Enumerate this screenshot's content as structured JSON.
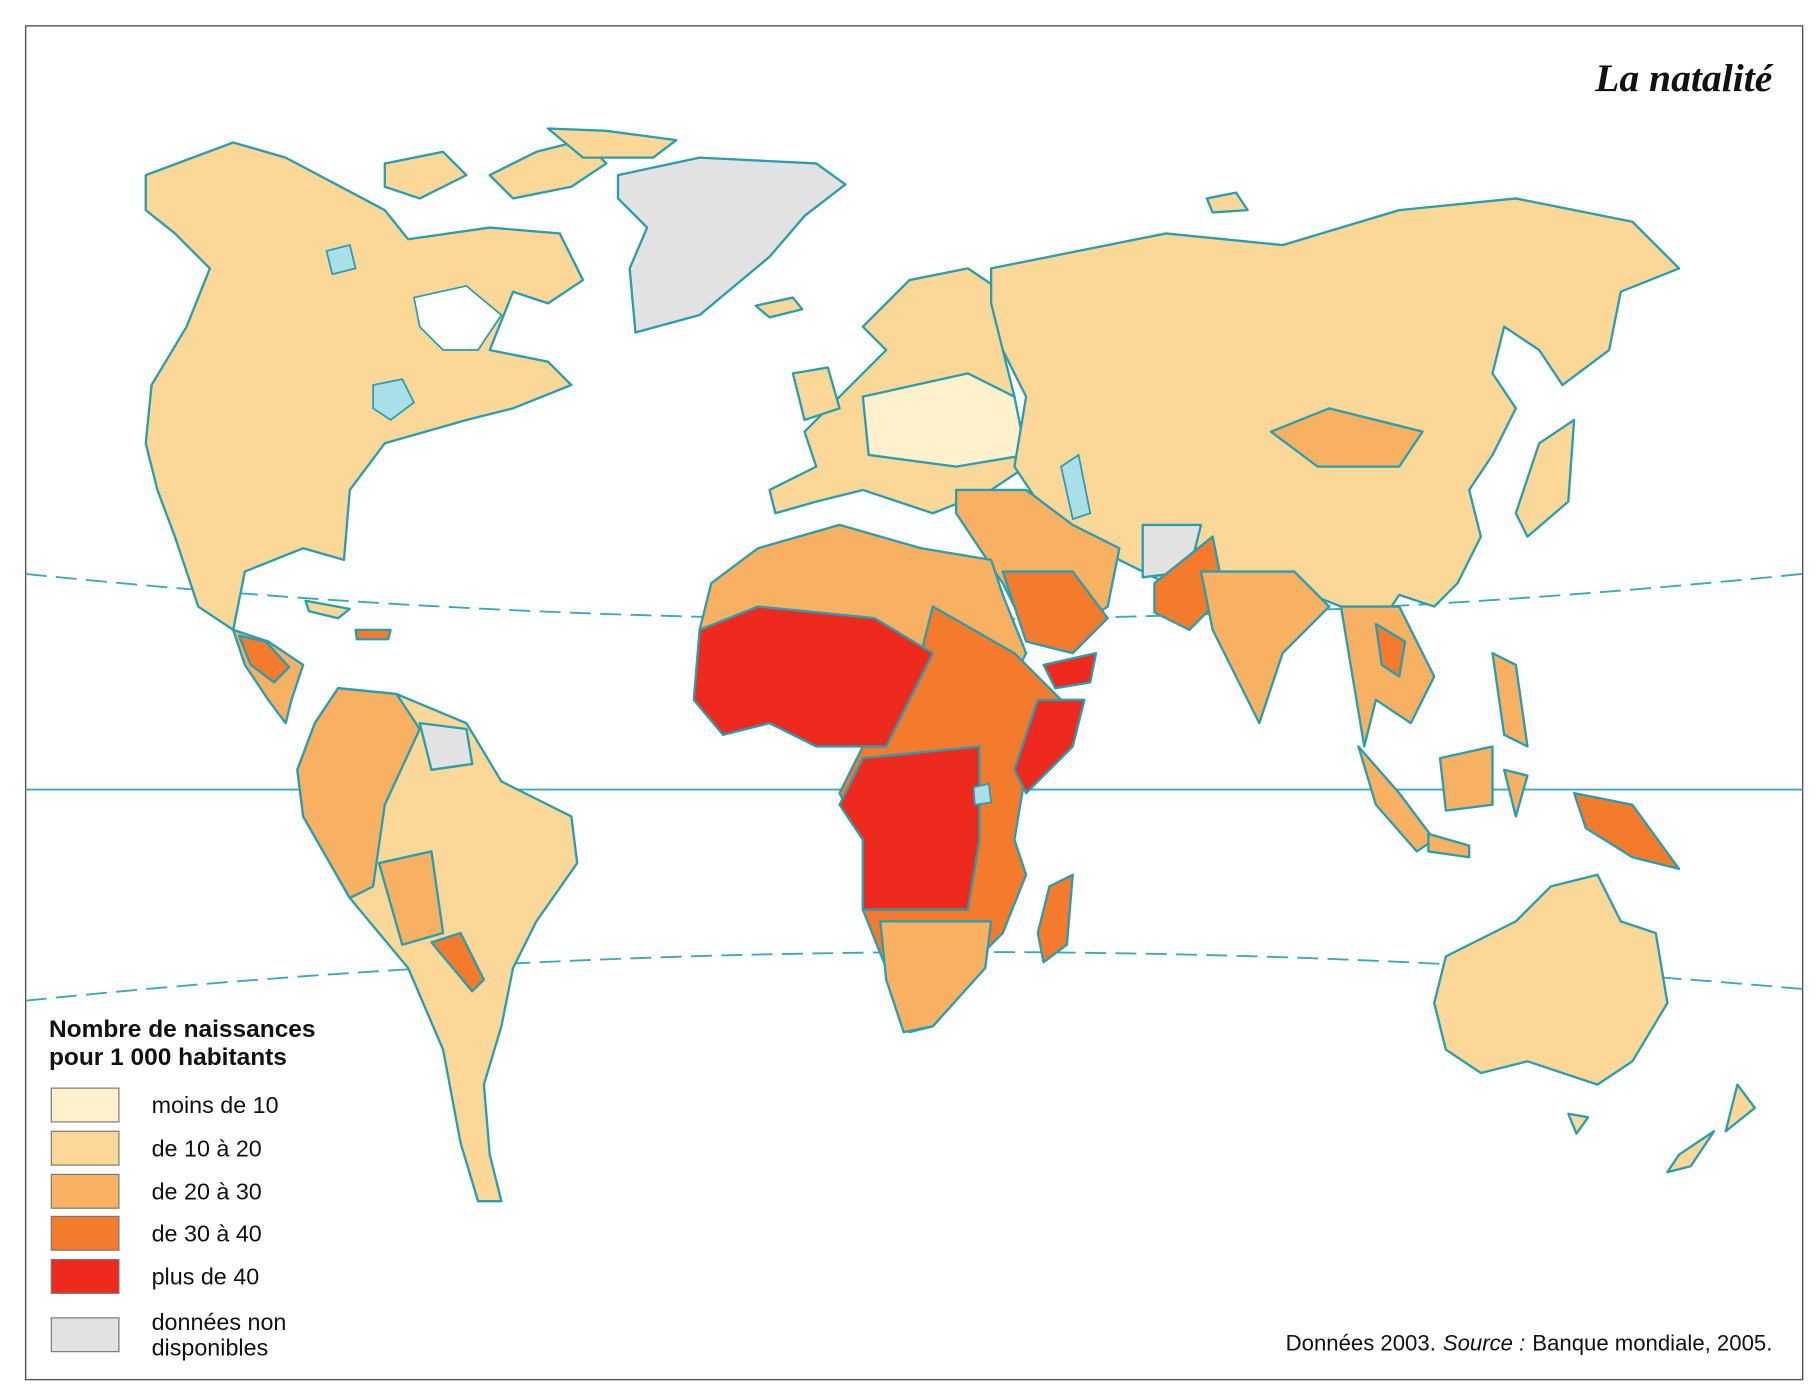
{
  "title": "La natalité",
  "legend": {
    "title_lines": [
      "Nombre de naissances",
      "pour 1 000 habitants"
    ],
    "items": [
      {
        "lines": [
          "moins de 10"
        ],
        "color": "#fff1cc"
      },
      {
        "lines": [
          "de 10 à 20"
        ],
        "color": "#fcd898"
      },
      {
        "lines": [
          "de 20 à 30"
        ],
        "color": "#f8b162"
      },
      {
        "lines": [
          "de 30 à 40"
        ],
        "color": "#f47a2c"
      },
      {
        "lines": [
          "plus de 40"
        ],
        "color": "#ee2a1e"
      },
      {
        "lines": [
          "données non",
          "disponibles"
        ],
        "color": "#e2e2e2"
      }
    ]
  },
  "source": {
    "lead": "Données 2003.",
    "label": "Source :",
    "text": "Banque mondiale, 2005."
  }
}
